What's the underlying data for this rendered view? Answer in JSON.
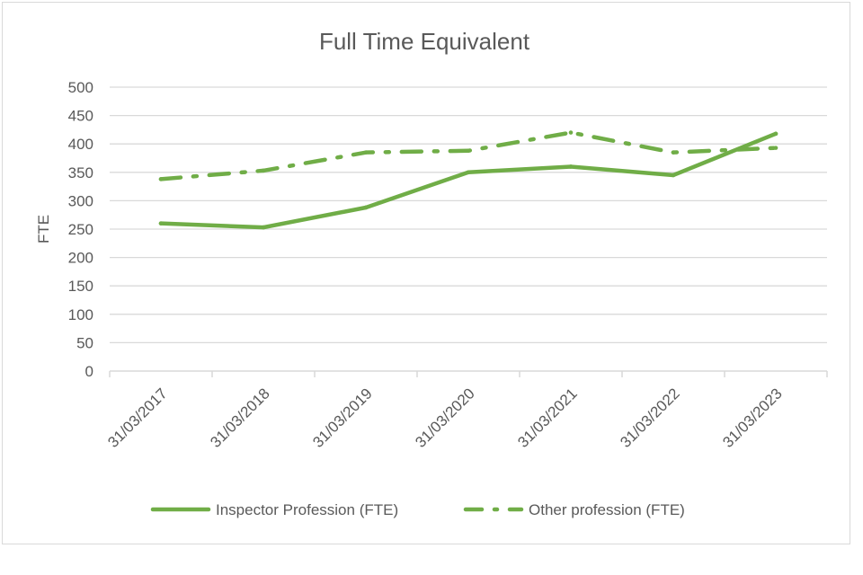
{
  "chart_data": {
    "type": "line",
    "title": "Full Time Equivalent",
    "xlabel": "",
    "ylabel": "FTE",
    "categories": [
      "31/03/2017",
      "31/03/2018",
      "31/03/2019",
      "31/03/2020",
      "31/03/2021",
      "31/03/2022",
      "31/03/2023"
    ],
    "ylim": [
      0,
      500
    ],
    "yticks": [
      "0",
      "50",
      "100",
      "150",
      "200",
      "250",
      "300",
      "350",
      "400",
      "450",
      "500"
    ],
    "grid": true,
    "legend_position": "bottom",
    "series": [
      {
        "name": "Inspector Profession (FTE)",
        "values": [
          260,
          253,
          288,
          350,
          360,
          345,
          418
        ],
        "color": "#70ad47",
        "style": "solid"
      },
      {
        "name": "Other profession (FTE)",
        "values": [
          338,
          353,
          385,
          388,
          420,
          385,
          393
        ],
        "color": "#70ad47",
        "style": "dash-dot"
      }
    ]
  }
}
